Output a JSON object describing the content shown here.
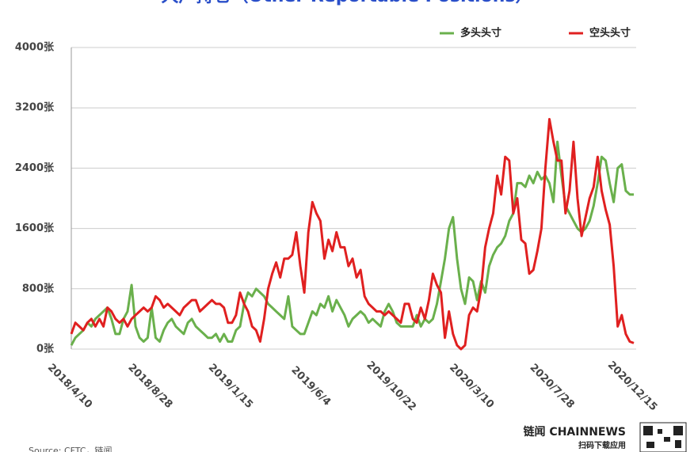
{
  "chart_data": {
    "type": "line",
    "title": "大户持仓（Other Reportable Positions）",
    "source": "Source: CFTC，链闻",
    "brand": "链闻 CHAINNEWS",
    "brand_sub": "扫码下载应用",
    "categories": [
      "2018/4/10",
      null,
      null,
      null,
      null,
      null,
      null,
      null,
      null,
      null,
      null,
      null,
      null,
      null,
      null,
      null,
      null,
      null,
      null,
      null,
      "2018/8/28",
      null,
      null,
      null,
      null,
      null,
      null,
      null,
      null,
      null,
      null,
      null,
      null,
      null,
      null,
      null,
      null,
      null,
      null,
      null,
      "2019/1/15",
      null,
      null,
      null,
      null,
      null,
      null,
      null,
      null,
      null,
      null,
      null,
      null,
      null,
      null,
      null,
      null,
      null,
      null,
      null,
      "2019/6/4",
      null,
      null,
      null,
      null,
      null,
      null,
      null,
      null,
      null,
      null,
      null,
      null,
      null,
      null,
      null,
      null,
      null,
      null,
      null,
      "2019/10/22",
      null,
      null,
      null,
      null,
      null,
      null,
      null,
      null,
      null,
      null,
      null,
      null,
      null,
      null,
      null,
      null,
      null,
      null,
      null,
      "2020/3/10",
      null,
      null,
      null,
      null,
      null,
      null,
      null,
      null,
      null,
      null,
      null,
      null,
      null,
      null,
      null,
      null,
      null,
      null,
      null,
      "2020/7/28",
      null,
      null,
      null,
      null,
      null,
      null,
      null,
      null,
      null,
      null,
      null,
      null,
      null,
      null,
      null,
      null,
      null,
      null,
      null,
      "2020/12/15"
    ],
    "series": [
      {
        "name": "多头头寸",
        "color": "#6ab04c",
        "values": [
          50,
          150,
          200,
          250,
          350,
          300,
          400,
          450,
          500,
          550,
          400,
          200,
          200,
          400,
          500,
          850,
          300,
          150,
          100,
          150,
          550,
          150,
          100,
          250,
          350,
          400,
          300,
          250,
          200,
          350,
          400,
          300,
          250,
          200,
          150,
          150,
          200,
          100,
          200,
          100,
          100,
          250,
          300,
          600,
          750,
          700,
          800,
          750,
          700,
          600,
          550,
          500,
          450,
          400,
          700,
          300,
          250,
          200,
          200,
          350,
          500,
          450,
          600,
          550,
          700,
          500,
          650,
          550,
          450,
          300,
          400,
          450,
          500,
          450,
          350,
          400,
          350,
          300,
          500,
          600,
          500,
          350,
          300,
          300,
          300,
          300,
          450,
          300,
          400,
          350,
          400,
          600,
          900,
          1200,
          1600,
          1750,
          1200,
          800,
          600,
          950,
          900,
          650,
          900,
          750,
          1100,
          1250,
          1350,
          1400,
          1500,
          1700,
          1800,
          2200,
          2200,
          2150,
          2300,
          2200,
          2350,
          2250,
          2300,
          2200,
          1950,
          2750,
          2300,
          1900,
          1800,
          1700,
          1600,
          1550,
          1600,
          1700,
          1900,
          2200,
          2550,
          2500,
          2200,
          1950,
          2400,
          2450,
          2100,
          2050,
          2050
        ]
      },
      {
        "name": "空头头寸",
        "color": "#e02020",
        "values": [
          200,
          350,
          300,
          250,
          350,
          400,
          300,
          400,
          300,
          550,
          500,
          400,
          350,
          400,
          300,
          400,
          450,
          500,
          550,
          500,
          550,
          700,
          650,
          550,
          600,
          550,
          500,
          450,
          550,
          600,
          650,
          650,
          500,
          550,
          600,
          650,
          600,
          600,
          550,
          350,
          350,
          450,
          750,
          600,
          500,
          300,
          250,
          100,
          400,
          800,
          1000,
          1150,
          950,
          1200,
          1200,
          1250,
          1550,
          1100,
          750,
          1550,
          1950,
          1800,
          1700,
          1200,
          1450,
          1300,
          1550,
          1350,
          1350,
          1100,
          1200,
          950,
          1050,
          700,
          600,
          550,
          500,
          500,
          450,
          500,
          450,
          400,
          350,
          600,
          600,
          400,
          350,
          550,
          400,
          650,
          1000,
          850,
          750,
          150,
          500,
          200,
          50,
          0,
          50,
          450,
          550,
          500,
          800,
          1350,
          1600,
          1800,
          2300,
          2050,
          2550,
          2500,
          1800,
          2000,
          1450,
          1400,
          1000,
          1050,
          1300,
          1600,
          2400,
          3050,
          2750,
          2500,
          2500,
          1800,
          2100,
          2750,
          2000,
          1500,
          1750,
          2000,
          2150,
          2550,
          2100,
          1850,
          1650,
          1100,
          300,
          450,
          200,
          100,
          80
        ]
      }
    ],
    "ylim": [
      0,
      4000
    ],
    "yticks": [
      {
        "value": 0,
        "label": "0张"
      },
      {
        "value": 800,
        "label": "800张"
      },
      {
        "value": 1600,
        "label": "1600张"
      },
      {
        "value": 2400,
        "label": "2400张"
      },
      {
        "value": 3200,
        "label": "3200张"
      },
      {
        "value": 4000,
        "label": "4000张"
      }
    ],
    "grid": true
  }
}
